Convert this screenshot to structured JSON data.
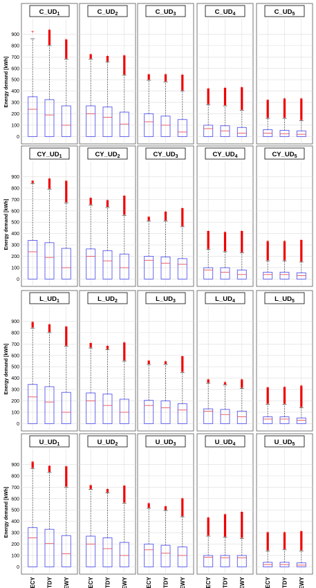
{
  "figure": {
    "ylabel": "Energy demand [kWh]",
    "categories": [
      "ECY",
      "TDY",
      "EWY"
    ],
    "ylim": [
      -40,
      1000
    ],
    "yticks": [
      0,
      100,
      200,
      300,
      400,
      500,
      600,
      700,
      800,
      900
    ],
    "colors": {
      "box": "#5555ee",
      "median": "#e8505a",
      "outlier": "#ee0000",
      "whisker": "#555555",
      "grid": "#dcdcdc"
    }
  },
  "chart_data": [
    {
      "type": "box",
      "title": "C_UD1",
      "title_base": "C_UD",
      "title_sub": "1",
      "series": [
        {
          "category": "ECY",
          "min": 0,
          "q1": 0,
          "median": 240,
          "q3": 350,
          "whisker_high": 860,
          "outliers_low": 920,
          "outliers_high": 920
        },
        {
          "category": "TDY",
          "min": 0,
          "q1": 0,
          "median": 190,
          "q3": 325,
          "whisker_high": 800,
          "outliers_low": 805,
          "outliers_high": 935
        },
        {
          "category": "EWY",
          "min": 0,
          "q1": 0,
          "median": 100,
          "q3": 270,
          "whisker_high": 680,
          "outliers_low": 685,
          "outliers_high": 850
        }
      ]
    },
    {
      "type": "box",
      "title": "C_UD2",
      "title_base": "C_UD",
      "title_sub": "2",
      "series": [
        {
          "category": "ECY",
          "min": 0,
          "q1": 0,
          "median": 200,
          "q3": 270,
          "whisker_high": 680,
          "outliers_low": 685,
          "outliers_high": 720
        },
        {
          "category": "TDY",
          "min": 0,
          "q1": 0,
          "median": 170,
          "q3": 260,
          "whisker_high": 655,
          "outliers_low": 660,
          "outliers_high": 705
        },
        {
          "category": "EWY",
          "min": 0,
          "q1": 0,
          "median": 110,
          "q3": 215,
          "whisker_high": 540,
          "outliers_low": 545,
          "outliers_high": 710
        }
      ]
    },
    {
      "type": "box",
      "title": "C_UD3",
      "title_base": "C_UD",
      "title_sub": "3",
      "series": [
        {
          "category": "ECY",
          "min": 0,
          "q1": 0,
          "median": 130,
          "q3": 200,
          "whisker_high": 495,
          "outliers_low": 500,
          "outliers_high": 545
        },
        {
          "category": "TDY",
          "min": 0,
          "q1": 0,
          "median": 100,
          "q3": 180,
          "whisker_high": 480,
          "outliers_low": 485,
          "outliers_high": 545
        },
        {
          "category": "EWY",
          "min": 0,
          "q1": 0,
          "median": 40,
          "q3": 150,
          "whisker_high": 400,
          "outliers_low": 405,
          "outliers_high": 540
        }
      ]
    },
    {
      "type": "box",
      "title": "C_UD4",
      "title_base": "C_UD",
      "title_sub": "4",
      "series": [
        {
          "category": "ECY",
          "min": 0,
          "q1": 0,
          "median": 70,
          "q3": 100,
          "whisker_high": 280,
          "outliers_low": 285,
          "outliers_high": 420
        },
        {
          "category": "TDY",
          "min": 0,
          "q1": 0,
          "median": 50,
          "q3": 95,
          "whisker_high": 270,
          "outliers_low": 275,
          "outliers_high": 425
        },
        {
          "category": "EWY",
          "min": 0,
          "q1": 0,
          "median": 30,
          "q3": 80,
          "whisker_high": 230,
          "outliers_low": 235,
          "outliers_high": 430
        }
      ]
    },
    {
      "type": "box",
      "title": "C_UD5",
      "title_base": "C_UD",
      "title_sub": "5",
      "series": [
        {
          "category": "ECY",
          "min": 0,
          "q1": 0,
          "median": 30,
          "q3": 60,
          "whisker_high": 160,
          "outliers_low": 165,
          "outliers_high": 320
        },
        {
          "category": "TDY",
          "min": 0,
          "q1": 0,
          "median": 25,
          "q3": 55,
          "whisker_high": 160,
          "outliers_low": 165,
          "outliers_high": 330
        },
        {
          "category": "EWY",
          "min": 0,
          "q1": 0,
          "median": 20,
          "q3": 50,
          "whisker_high": 140,
          "outliers_low": 145,
          "outliers_high": 330
        }
      ]
    },
    {
      "type": "box",
      "title": "CY_UD1",
      "title_base": "CY_UD",
      "title_sub": "1",
      "series": [
        {
          "category": "ECY",
          "min": 0,
          "q1": 0,
          "median": 240,
          "q3": 340,
          "whisker_high": 840,
          "outliers_low": 845,
          "outliers_high": 860
        },
        {
          "category": "TDY",
          "min": 0,
          "q1": 0,
          "median": 190,
          "q3": 320,
          "whisker_high": 790,
          "outliers_low": 795,
          "outliers_high": 880
        },
        {
          "category": "EWY",
          "min": 0,
          "q1": 0,
          "median": 100,
          "q3": 270,
          "whisker_high": 670,
          "outliers_low": 675,
          "outliers_high": 860
        }
      ]
    },
    {
      "type": "box",
      "title": "CY_UD2",
      "title_base": "CY_UD",
      "title_sub": "2",
      "series": [
        {
          "category": "ECY",
          "min": 0,
          "q1": 0,
          "median": 200,
          "q3": 265,
          "whisker_high": 650,
          "outliers_low": 655,
          "outliers_high": 710
        },
        {
          "category": "TDY",
          "min": 0,
          "q1": 0,
          "median": 160,
          "q3": 250,
          "whisker_high": 630,
          "outliers_low": 635,
          "outliers_high": 690
        },
        {
          "category": "EWY",
          "min": 0,
          "q1": 0,
          "median": 100,
          "q3": 220,
          "whisker_high": 560,
          "outliers_low": 565,
          "outliers_high": 730
        }
      ]
    },
    {
      "type": "box",
      "title": "CY_UD3",
      "title_base": "CY_UD",
      "title_sub": "3",
      "series": [
        {
          "category": "ECY",
          "min": 0,
          "q1": 0,
          "median": 165,
          "q3": 200,
          "whisker_high": 510,
          "outliers_low": 515,
          "outliers_high": 545
        },
        {
          "category": "TDY",
          "min": 0,
          "q1": 0,
          "median": 140,
          "q3": 195,
          "whisker_high": 510,
          "outliers_low": 515,
          "outliers_high": 590
        },
        {
          "category": "EWY",
          "min": 0,
          "q1": 0,
          "median": 130,
          "q3": 180,
          "whisker_high": 460,
          "outliers_low": 465,
          "outliers_high": 620
        }
      ]
    },
    {
      "type": "box",
      "title": "CY_UD4",
      "title_base": "CY_UD",
      "title_sub": "4",
      "series": [
        {
          "category": "ECY",
          "min": 0,
          "q1": 0,
          "median": 80,
          "q3": 100,
          "whisker_high": 260,
          "outliers_low": 265,
          "outliers_high": 420
        },
        {
          "category": "TDY",
          "min": 0,
          "q1": 0,
          "median": 60,
          "q3": 100,
          "whisker_high": 240,
          "outliers_low": 245,
          "outliers_high": 410
        },
        {
          "category": "EWY",
          "min": 0,
          "q1": 0,
          "median": 40,
          "q3": 80,
          "whisker_high": 230,
          "outliers_low": 235,
          "outliers_high": 420
        }
      ]
    },
    {
      "type": "box",
      "title": "CY_UD5",
      "title_base": "CY_UD",
      "title_sub": "5",
      "series": [
        {
          "category": "ECY",
          "min": 0,
          "q1": 0,
          "median": 40,
          "q3": 60,
          "whisker_high": 160,
          "outliers_low": 165,
          "outliers_high": 330
        },
        {
          "category": "TDY",
          "min": 0,
          "q1": 0,
          "median": 40,
          "q3": 60,
          "whisker_high": 160,
          "outliers_low": 165,
          "outliers_high": 330
        },
        {
          "category": "EWY",
          "min": 0,
          "q1": 0,
          "median": 30,
          "q3": 55,
          "whisker_high": 150,
          "outliers_low": 155,
          "outliers_high": 340
        }
      ]
    },
    {
      "type": "box",
      "title": "L_UD1",
      "title_base": "L_UD",
      "title_sub": "1",
      "series": [
        {
          "category": "ECY",
          "min": 0,
          "q1": 0,
          "median": 235,
          "q3": 345,
          "whisker_high": 840,
          "outliers_low": 845,
          "outliers_high": 890
        },
        {
          "category": "TDY",
          "min": 0,
          "q1": 0,
          "median": 190,
          "q3": 325,
          "whisker_high": 800,
          "outliers_low": 805,
          "outliers_high": 870
        },
        {
          "category": "EWY",
          "min": 0,
          "q1": 0,
          "median": 100,
          "q3": 275,
          "whisker_high": 680,
          "outliers_low": 685,
          "outliers_high": 850
        }
      ]
    },
    {
      "type": "box",
      "title": "L_UD2",
      "title_base": "L_UD",
      "title_sub": "2",
      "series": [
        {
          "category": "ECY",
          "min": 0,
          "q1": 0,
          "median": 200,
          "q3": 270,
          "whisker_high": 665,
          "outliers_low": 670,
          "outliers_high": 705
        },
        {
          "category": "TDY",
          "min": 0,
          "q1": 0,
          "median": 160,
          "q3": 260,
          "whisker_high": 650,
          "outliers_low": 655,
          "outliers_high": 680
        },
        {
          "category": "EWY",
          "min": 0,
          "q1": 0,
          "median": 100,
          "q3": 215,
          "whisker_high": 550,
          "outliers_low": 555,
          "outliers_high": 710
        }
      ]
    },
    {
      "type": "box",
      "title": "L_UD3",
      "title_base": "L_UD",
      "title_sub": "3",
      "series": [
        {
          "category": "ECY",
          "min": 0,
          "q1": 0,
          "median": 160,
          "q3": 205,
          "whisker_high": 520,
          "outliers_low": 525,
          "outliers_high": 550
        },
        {
          "category": "TDY",
          "min": 0,
          "q1": 0,
          "median": 140,
          "q3": 200,
          "whisker_high": 520,
          "outliers_low": 525,
          "outliers_high": 545
        },
        {
          "category": "EWY",
          "min": 0,
          "q1": 0,
          "median": 120,
          "q3": 175,
          "whisker_high": 450,
          "outliers_low": 455,
          "outliers_high": 590
        }
      ]
    },
    {
      "type": "box",
      "title": "L_UD4",
      "title_base": "L_UD",
      "title_sub": "4",
      "series": [
        {
          "category": "ECY",
          "min": 0,
          "q1": 0,
          "median": 110,
          "q3": 130,
          "whisker_high": 355,
          "outliers_low": 360,
          "outliers_high": 385
        },
        {
          "category": "TDY",
          "min": 0,
          "q1": 0,
          "median": 80,
          "q3": 125,
          "whisker_high": 340,
          "outliers_low": 345,
          "outliers_high": 360
        },
        {
          "category": "EWY",
          "min": 0,
          "q1": 0,
          "median": 60,
          "q3": 110,
          "whisker_high": 310,
          "outliers_low": 315,
          "outliers_high": 385
        }
      ]
    },
    {
      "type": "box",
      "title": "L_UD5",
      "title_base": "L_UD",
      "title_sub": "5",
      "series": [
        {
          "category": "ECY",
          "min": 0,
          "q1": 0,
          "median": 40,
          "q3": 60,
          "whisker_high": 170,
          "outliers_low": 175,
          "outliers_high": 315
        },
        {
          "category": "TDY",
          "min": 0,
          "q1": 0,
          "median": 40,
          "q3": 60,
          "whisker_high": 170,
          "outliers_low": 175,
          "outliers_high": 320
        },
        {
          "category": "EWY",
          "min": 0,
          "q1": 0,
          "median": 30,
          "q3": 50,
          "whisker_high": 140,
          "outliers_low": 145,
          "outliers_high": 330
        }
      ]
    },
    {
      "type": "box",
      "title": "U_UD1",
      "title_base": "U_UD",
      "title_sub": "1",
      "series": [
        {
          "category": "ECY",
          "min": 0,
          "q1": 0,
          "median": 255,
          "q3": 345,
          "whisker_high": 865,
          "outliers_low": 870,
          "outliers_high": 920
        },
        {
          "category": "TDY",
          "min": 0,
          "q1": 0,
          "median": 205,
          "q3": 330,
          "whisker_high": 830,
          "outliers_low": 835,
          "outliers_high": 885
        },
        {
          "category": "EWY",
          "min": 0,
          "q1": 0,
          "median": 115,
          "q3": 275,
          "whisker_high": 700,
          "outliers_low": 705,
          "outliers_high": 880
        }
      ]
    },
    {
      "type": "box",
      "title": "U_UD2",
      "title_base": "U_UD",
      "title_sub": "2",
      "series": [
        {
          "category": "ECY",
          "min": 0,
          "q1": 0,
          "median": 200,
          "q3": 270,
          "whisker_high": 680,
          "outliers_low": 685,
          "outliers_high": 715
        },
        {
          "category": "TDY",
          "min": 0,
          "q1": 0,
          "median": 160,
          "q3": 255,
          "whisker_high": 650,
          "outliers_low": 655,
          "outliers_high": 680
        },
        {
          "category": "EWY",
          "min": 0,
          "q1": 0,
          "median": 100,
          "q3": 215,
          "whisker_high": 560,
          "outliers_low": 565,
          "outliers_high": 710
        }
      ]
    },
    {
      "type": "box",
      "title": "U_UD3",
      "title_base": "U_UD",
      "title_sub": "3",
      "series": [
        {
          "category": "ECY",
          "min": 0,
          "q1": 0,
          "median": 150,
          "q3": 200,
          "whisker_high": 515,
          "outliers_low": 520,
          "outliers_high": 555
        },
        {
          "category": "TDY",
          "min": 0,
          "q1": 0,
          "median": 120,
          "q3": 190,
          "whisker_high": 495,
          "outliers_low": 500,
          "outliers_high": 530
        },
        {
          "category": "EWY",
          "min": 0,
          "q1": 0,
          "median": 100,
          "q3": 175,
          "whisker_high": 440,
          "outliers_low": 445,
          "outliers_high": 600
        }
      ]
    },
    {
      "type": "box",
      "title": "U_UD4",
      "title_base": "U_UD",
      "title_sub": "4",
      "series": [
        {
          "category": "ECY",
          "min": 0,
          "q1": 0,
          "median": 85,
          "q3": 100,
          "whisker_high": 270,
          "outliers_low": 275,
          "outliers_high": 430
        },
        {
          "category": "TDY",
          "min": 0,
          "q1": 0,
          "median": 80,
          "q3": 100,
          "whisker_high": 260,
          "outliers_low": 265,
          "outliers_high": 460
        },
        {
          "category": "EWY",
          "min": 0,
          "q1": 0,
          "median": 80,
          "q3": 100,
          "whisker_high": 250,
          "outliers_low": 255,
          "outliers_high": 480
        }
      ]
    },
    {
      "type": "box",
      "title": "U_UD5",
      "title_base": "U_UD",
      "title_sub": "5",
      "series": [
        {
          "category": "ECY",
          "min": 0,
          "q1": 0,
          "median": 20,
          "q3": 40,
          "whisker_high": 140,
          "outliers_low": 145,
          "outliers_high": 300
        },
        {
          "category": "TDY",
          "min": 0,
          "q1": 0,
          "median": 20,
          "q3": 40,
          "whisker_high": 150,
          "outliers_low": 155,
          "outliers_high": 300
        },
        {
          "category": "EWY",
          "min": 0,
          "q1": 0,
          "median": 15,
          "q3": 35,
          "whisker_high": 140,
          "outliers_low": 145,
          "outliers_high": 310
        }
      ]
    }
  ]
}
